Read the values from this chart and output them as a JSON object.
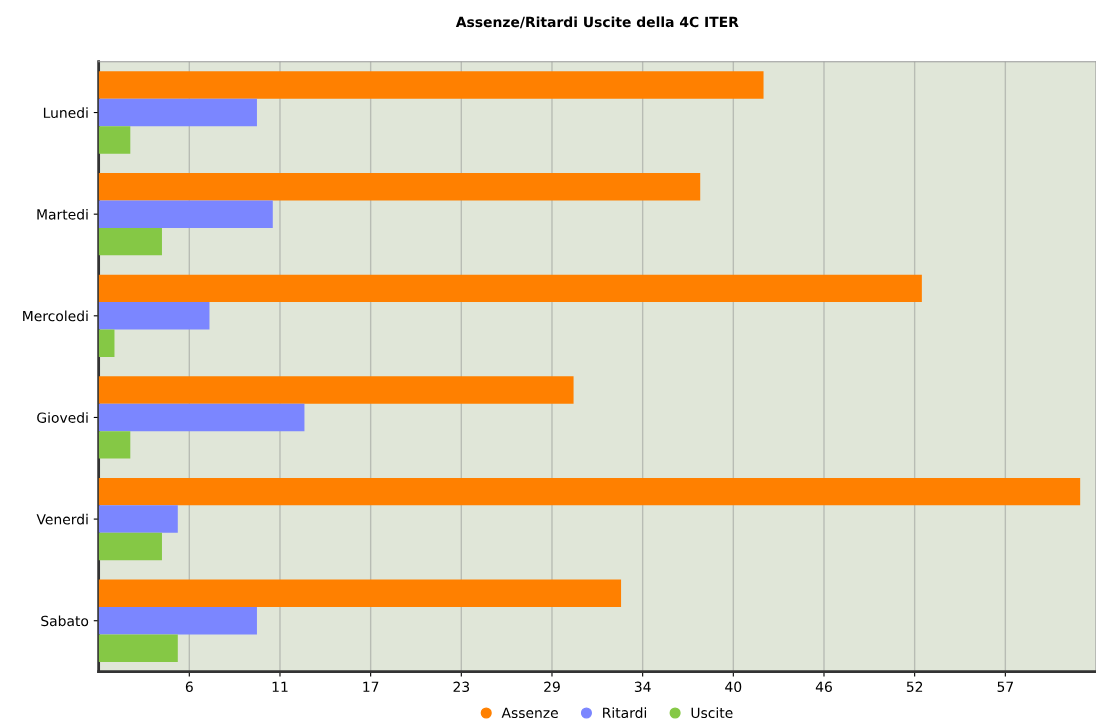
{
  "chart_data": {
    "type": "bar",
    "orientation": "horizontal",
    "title": "Assenze/Ritardi Uscite della 4C ITER",
    "categories": [
      "Lunedi",
      "Martedi",
      "Mercoledi",
      "Giovedi",
      "Venerdi",
      "Sabato"
    ],
    "series": [
      {
        "name": "Assenze",
        "color": "#ff8000",
        "values": [
          42,
          38,
          52,
          30,
          62,
          33
        ]
      },
      {
        "name": "Ritardi",
        "color": "#7b86ff",
        "values": [
          10,
          11,
          7,
          13,
          5,
          10
        ]
      },
      {
        "name": "Uscite",
        "color": "#85c845",
        "values": [
          2,
          4,
          1,
          2,
          4,
          5
        ]
      }
    ],
    "xlim": [
      0,
      63
    ],
    "xticks": [
      {
        "value": 5.727,
        "label": "6"
      },
      {
        "value": 11.455,
        "label": "11"
      },
      {
        "value": 17.182,
        "label": "17"
      },
      {
        "value": 22.909,
        "label": "23"
      },
      {
        "value": 28.636,
        "label": "29"
      },
      {
        "value": 34.364,
        "label": "34"
      },
      {
        "value": 40.091,
        "label": "40"
      },
      {
        "value": 45.818,
        "label": "46"
      },
      {
        "value": 51.545,
        "label": "52"
      },
      {
        "value": 57.273,
        "label": "57"
      }
    ],
    "grid": "x",
    "legend": "bottom"
  }
}
